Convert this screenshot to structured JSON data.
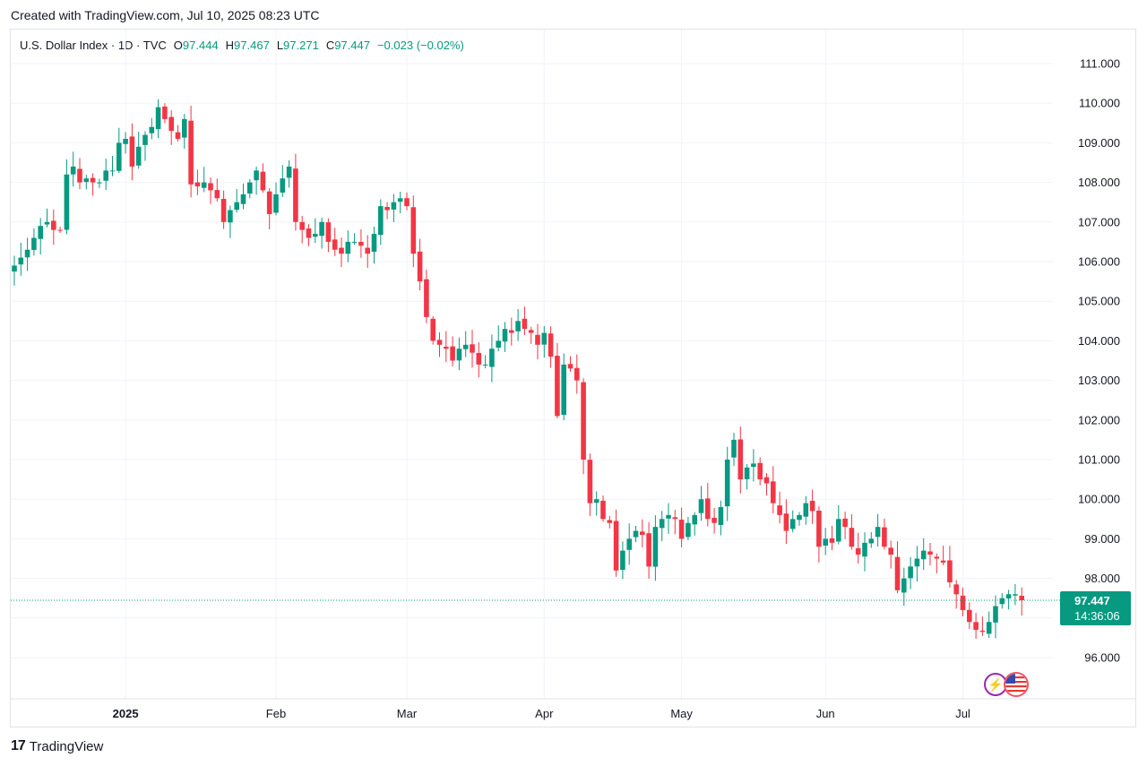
{
  "header": {
    "created_text": "Created with TradingView.com, Jul 10, 2025 08:23 UTC"
  },
  "legend": {
    "symbol": "U.S. Dollar Index · 1D · TVC",
    "o_label": "O",
    "o_value": "97.444",
    "h_label": "H",
    "h_value": "97.467",
    "l_label": "L",
    "l_value": "97.271",
    "c_label": "C",
    "c_value": "97.447",
    "change": "−0.023 (−0.02%)"
  },
  "price_tag": {
    "price": "97.447",
    "countdown": "14:36:06"
  },
  "footer": {
    "logo_mark": "17",
    "brand": "TradingView"
  },
  "colors": {
    "up": "#089981",
    "down": "#f23645",
    "grid": "#f0f3fa",
    "text": "#131722"
  },
  "chart_data": {
    "type": "candlestick",
    "title": "U.S. Dollar Index · 1D · TVC",
    "ylim": [
      95.0,
      111.6
    ],
    "y_ticks": [
      "111.000",
      "110.000",
      "109.000",
      "108.000",
      "107.000",
      "106.000",
      "105.000",
      "104.000",
      "103.000",
      "102.000",
      "101.000",
      "100.000",
      "99.000",
      "98.000",
      "96.000"
    ],
    "x_labels": [
      {
        "label": "2025",
        "index": 17,
        "bold": true
      },
      {
        "label": "Feb",
        "index": 40,
        "bold": false
      },
      {
        "label": "Mar",
        "index": 60,
        "bold": false
      },
      {
        "label": "Apr",
        "index": 81,
        "bold": false
      },
      {
        "label": "May",
        "index": 102,
        "bold": false
      },
      {
        "label": "Jun",
        "index": 124,
        "bold": false
      },
      {
        "label": "Jul",
        "index": 145,
        "bold": false
      }
    ],
    "last_price": 97.447,
    "closes": [
      105.9,
      106.1,
      106.3,
      106.6,
      106.9,
      107.0,
      106.8,
      106.8,
      108.2,
      108.4,
      108.0,
      108.1,
      108.0,
      108.0,
      108.3,
      108.3,
      109.0,
      109.1,
      108.4,
      108.9,
      109.2,
      109.4,
      109.9,
      109.6,
      109.3,
      109.1,
      109.6,
      107.95,
      107.9,
      108.0,
      107.8,
      107.6,
      107.0,
      107.3,
      107.5,
      107.7,
      108.0,
      108.3,
      107.8,
      107.2,
      107.7,
      108.1,
      108.4,
      107.0,
      106.8,
      106.6,
      106.7,
      107.0,
      106.5,
      106.3,
      106.2,
      106.5,
      106.5,
      106.4,
      106.2,
      106.7,
      107.4,
      107.3,
      107.5,
      107.6,
      107.4,
      106.2,
      105.5,
      104.6,
      104.0,
      103.9,
      103.8,
      103.5,
      103.8,
      103.9,
      103.7,
      103.4,
      103.4,
      103.8,
      104.0,
      104.3,
      104.2,
      104.5,
      104.3,
      104.2,
      103.9,
      104.2,
      103.6,
      102.1,
      103.4,
      103.3,
      103.0,
      101.0,
      99.9,
      100.0,
      99.5,
      99.4,
      98.2,
      98.7,
      99.0,
      99.2,
      99.1,
      98.3,
      99.3,
      99.5,
      99.6,
      99.5,
      99.0,
      99.4,
      99.6,
      100.0,
      99.5,
      99.4,
      99.8,
      101.0,
      101.5,
      100.5,
      100.8,
      100.9,
      100.5,
      100.4,
      99.9,
      99.6,
      99.2,
      99.5,
      99.6,
      99.9,
      99.7,
      98.8,
      99.0,
      98.9,
      99.5,
      99.3,
      98.8,
      98.6,
      98.9,
      99.0,
      99.3,
      98.8,
      98.6,
      97.7,
      98.0,
      98.3,
      98.5,
      98.7,
      98.6,
      98.5,
      98.4,
      97.9,
      97.6,
      97.2,
      96.9,
      96.7,
      96.65,
      96.9,
      97.3,
      97.5,
      97.6,
      97.6,
      97.447
    ],
    "series_note": "Daily OHLC candles, Dec 2024 – Jul 10 2025, derived from closes"
  }
}
